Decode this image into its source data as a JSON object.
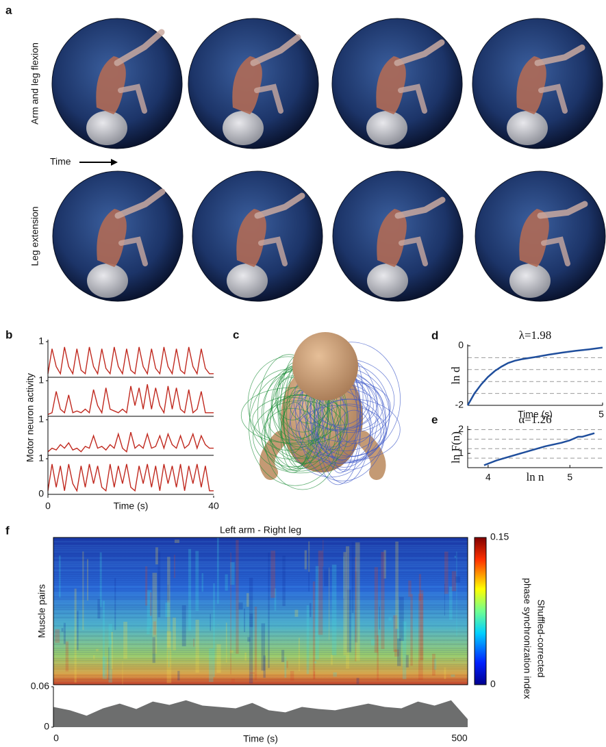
{
  "figure": {
    "a": {
      "label": "a",
      "row_labels": [
        "Arm and leg flexion",
        "Leg extension"
      ],
      "arrow_label": "Time"
    },
    "c": {
      "label": "c"
    }
  },
  "chart_data": [
    {
      "type": "line",
      "label": "b",
      "ylabel": "Motor neuron activity",
      "xlabel": "Time (s)",
      "x": [
        0,
        1,
        2,
        3,
        4,
        5,
        6,
        7,
        8,
        9,
        10,
        11,
        12,
        13,
        14,
        15,
        16,
        17,
        18,
        19,
        20,
        21,
        22,
        23,
        24,
        25,
        26,
        27,
        28,
        29,
        30,
        31,
        32,
        33,
        34,
        35,
        36,
        37,
        38,
        39,
        40
      ],
      "xlim": [
        0,
        40
      ],
      "xticks": [
        0,
        40
      ],
      "ylim": [
        0,
        1
      ],
      "yticks": [
        0,
        1
      ],
      "series": [
        {
          "color": "#c0281e",
          "values": [
            0.1,
            0.8,
            0.3,
            0.1,
            0.85,
            0.3,
            0.1,
            0.8,
            0.2,
            0.1,
            0.85,
            0.3,
            0.1,
            0.8,
            0.25,
            0.1,
            0.85,
            0.3,
            0.1,
            0.8,
            0.2,
            0.1,
            0.85,
            0.3,
            0.1,
            0.8,
            0.25,
            0.1,
            0.85,
            0.3,
            0.1,
            0.8,
            0.2,
            0.1,
            0.85,
            0.3,
            0.1,
            0.8,
            0.25,
            0.1,
            0.1
          ]
        },
        {
          "color": "#c0281e",
          "values": [
            0.05,
            0.1,
            0.7,
            0.2,
            0.1,
            0.6,
            0.1,
            0.15,
            0.1,
            0.2,
            0.1,
            0.75,
            0.3,
            0.1,
            0.8,
            0.2,
            0.15,
            0.1,
            0.2,
            0.1,
            0.85,
            0.3,
            0.8,
            0.2,
            0.9,
            0.2,
            0.8,
            0.3,
            0.1,
            0.85,
            0.2,
            0.8,
            0.2,
            0.1,
            0.75,
            0.1,
            0.2,
            0.7,
            0.1,
            0.1,
            0.1
          ]
        },
        {
          "color": "#c0281e",
          "values": [
            0.1,
            0.2,
            0.15,
            0.3,
            0.2,
            0.35,
            0.15,
            0.2,
            0.1,
            0.25,
            0.2,
            0.55,
            0.2,
            0.25,
            0.15,
            0.3,
            0.2,
            0.6,
            0.2,
            0.1,
            0.65,
            0.2,
            0.3,
            0.2,
            0.6,
            0.2,
            0.25,
            0.55,
            0.2,
            0.6,
            0.3,
            0.2,
            0.55,
            0.2,
            0.3,
            0.6,
            0.2,
            0.55,
            0.3,
            0.2,
            0.2
          ]
        },
        {
          "color": "#c0281e",
          "values": [
            0.1,
            0.85,
            0.2,
            0.8,
            0.1,
            0.85,
            0.3,
            0.1,
            0.8,
            0.2,
            0.85,
            0.3,
            0.8,
            0.2,
            0.1,
            0.85,
            0.2,
            0.8,
            0.3,
            0.85,
            0.2,
            0.1,
            0.8,
            0.3,
            0.85,
            0.2,
            0.8,
            0.1,
            0.85,
            0.3,
            0.8,
            0.2,
            0.85,
            0.1,
            0.8,
            0.3,
            0.85,
            0.2,
            0.8,
            0.1,
            0.1
          ]
        }
      ]
    },
    {
      "type": "line",
      "label": "d",
      "title": "λ=1.98",
      "ylabel": "ln d",
      "xlabel": "Time (s)",
      "x": [
        0,
        0.25,
        0.5,
        0.75,
        1,
        1.25,
        1.5,
        1.75,
        2,
        2.5,
        3,
        3.5,
        4,
        4.5,
        5
      ],
      "values": [
        -2,
        -1.6,
        -1.3,
        -1.05,
        -0.85,
        -0.7,
        -0.58,
        -0.5,
        -0.45,
        -0.38,
        -0.3,
        -0.23,
        -0.17,
        -0.12,
        -0.06
      ],
      "xlim": [
        0,
        5
      ],
      "xticks": [
        5
      ],
      "ylim": [
        -2,
        0
      ],
      "yticks": [
        -2,
        0
      ],
      "grid_lines": [
        -0.4,
        -0.8,
        -1.2,
        -1.6
      ],
      "color": "#1f4e9c"
    },
    {
      "type": "line",
      "label": "e",
      "title": "α=1.26",
      "ylabel": "ln F(n)",
      "xlabel": "ln n",
      "x": [
        3.95,
        4.1,
        4.3,
        4.5,
        4.7,
        4.9,
        5.0,
        5.1,
        5.15,
        5.25,
        5.3
      ],
      "values": [
        0.5,
        0.7,
        0.9,
        1.1,
        1.3,
        1.45,
        1.55,
        1.7,
        1.7,
        1.8,
        1.85
      ],
      "xlim": [
        3.75,
        5.4
      ],
      "xticks": [
        4,
        5
      ],
      "ylim": [
        0.4,
        2.1
      ],
      "yticks": [
        1,
        2
      ],
      "grid_lines": [
        2,
        1.6,
        1.2,
        0.8
      ],
      "color": "#1f4e9c"
    },
    {
      "type": "area",
      "label": "f",
      "title": "Left arm - Right leg",
      "ylabel": "Muscle pairs",
      "xlabel": "Time (s)",
      "colorbar": {
        "lim": [
          0,
          0.15
        ],
        "ticks": [
          0,
          0.15
        ],
        "label": [
          "Shuffled-corrected",
          "phase synchronization index"
        ]
      },
      "x": [
        0,
        20,
        40,
        60,
        80,
        100,
        120,
        140,
        160,
        180,
        200,
        220,
        240,
        260,
        280,
        300,
        320,
        340,
        360,
        380,
        400,
        420,
        440,
        460,
        480,
        500
      ],
      "values": [
        0.03,
        0.025,
        0.017,
        0.028,
        0.035,
        0.027,
        0.038,
        0.033,
        0.04,
        0.032,
        0.03,
        0.028,
        0.036,
        0.025,
        0.022,
        0.03,
        0.027,
        0.025,
        0.03,
        0.035,
        0.03,
        0.028,
        0.038,
        0.032,
        0.04,
        0.012
      ],
      "xlim": [
        0,
        500
      ],
      "xticks": [
        0,
        500
      ],
      "ylim": [
        0,
        0.06
      ],
      "yticks": [
        0,
        0.06
      ],
      "color": "#6d6e6e"
    }
  ]
}
